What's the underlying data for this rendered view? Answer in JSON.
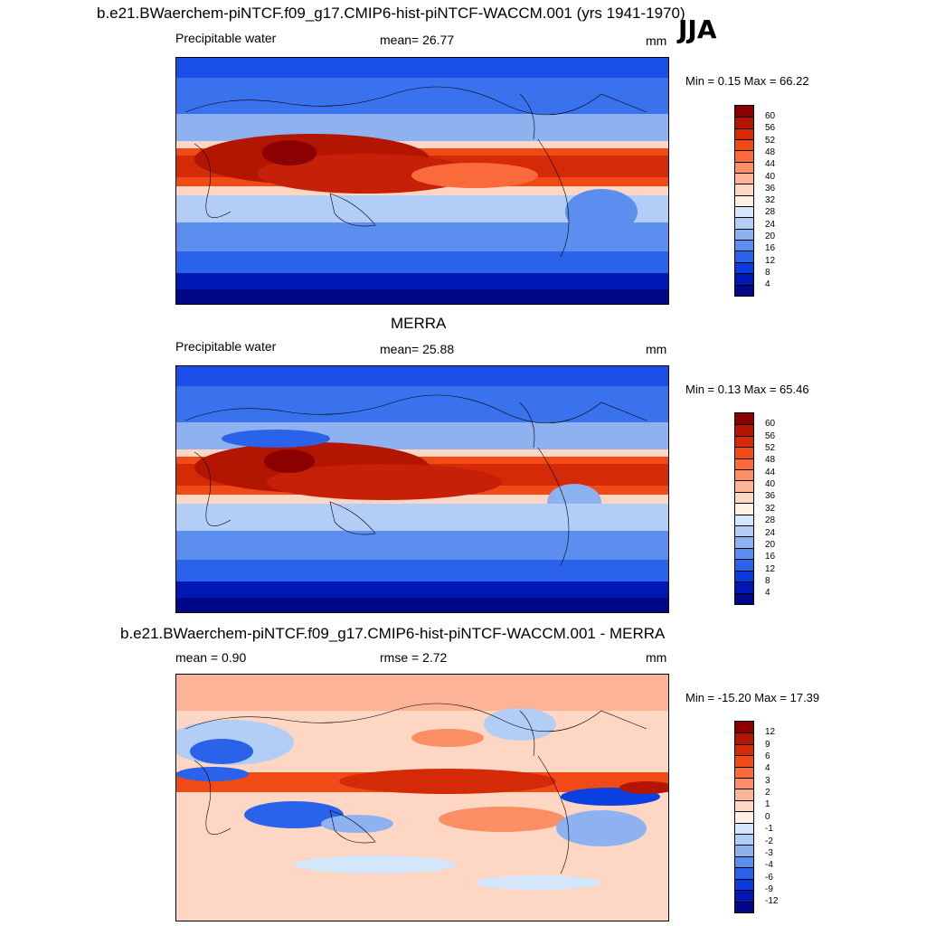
{
  "season": "JJA",
  "panels": [
    {
      "title": "b.e21.BWaerchem-piNTCF.f09_g17.CMIP6-hist-piNTCF-WACCM.001 (yrs 1941-1970)",
      "left_label": "Precipitable water",
      "center_label": "mean=  26.77",
      "units": "mm",
      "minmax": "Min =   0.15 Max =  66.22",
      "colorbar_labels": [
        "60",
        "56",
        "52",
        "48",
        "44",
        "40",
        "36",
        "32",
        "28",
        "24",
        "20",
        "16",
        "12",
        "8",
        "4"
      ],
      "colorbar_colors": [
        "#8b0000",
        "#b21600",
        "#d42a08",
        "#f04a16",
        "#fb6a3a",
        "#fc8e63",
        "#fdb396",
        "#fdd6c4",
        "#fff0e3",
        "#d4e6fb",
        "#b2cdf6",
        "#8eb2f0",
        "#5c8ef0",
        "#2b62ea",
        "#083ade",
        "#0018b4",
        "#00088a"
      ]
    },
    {
      "title": "MERRA",
      "left_label": "Precipitable water",
      "center_label": "mean=  25.88",
      "units": "mm",
      "minmax": "Min =   0.13 Max =  65.46",
      "colorbar_labels": [
        "60",
        "56",
        "52",
        "48",
        "44",
        "40",
        "36",
        "32",
        "28",
        "24",
        "20",
        "16",
        "12",
        "8",
        "4"
      ],
      "colorbar_colors": [
        "#8b0000",
        "#b21600",
        "#d42a08",
        "#f04a16",
        "#fb6a3a",
        "#fc8e63",
        "#fdb396",
        "#fdd6c4",
        "#fff0e3",
        "#d4e6fb",
        "#b2cdf6",
        "#8eb2f0",
        "#5c8ef0",
        "#2b62ea",
        "#083ade",
        "#0018b4",
        "#00088a"
      ]
    },
    {
      "title": "b.e21.BWaerchem-piNTCF.f09_g17.CMIP6-hist-piNTCF-WACCM.001 - MERRA",
      "left_label": "mean =   0.90",
      "center_label": "rmse =   2.72",
      "units": "mm",
      "minmax": "Min = -15.20 Max =  17.39",
      "colorbar_labels": [
        "12",
        "9",
        "6",
        "4",
        "3",
        "2",
        "1",
        "0",
        "-1",
        "-2",
        "-3",
        "-4",
        "-6",
        "-9",
        "-12"
      ],
      "colorbar_colors": [
        "#8b0000",
        "#b21600",
        "#d42a08",
        "#f04a16",
        "#fb6a3a",
        "#fc8e63",
        "#fdb396",
        "#fdd6c4",
        "#fff0e3",
        "#d4e6fb",
        "#b2cdf6",
        "#8eb2f0",
        "#5c8ef0",
        "#2b62ea",
        "#083ade",
        "#0018b4",
        "#00088a"
      ]
    }
  ]
}
